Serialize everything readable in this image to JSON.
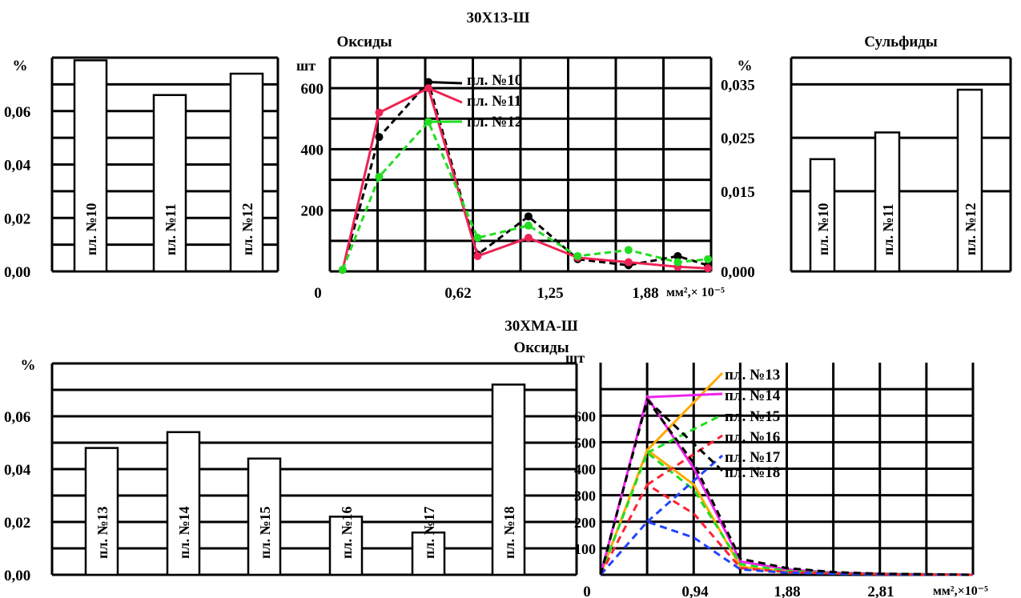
{
  "sections": {
    "top_title": "30Х13-Ш",
    "bottom_title": "30ХМА-Ш",
    "bottom_subtitle": "Оксиды"
  },
  "chart_data": [
    {
      "id": "top-left-bar",
      "type": "bar",
      "title": "",
      "ylabel": "%",
      "ylim": [
        0,
        0.08
      ],
      "yticks": [
        "0,00",
        "0,02",
        "0,04",
        "0,06"
      ],
      "categories": [
        "пл. №10",
        "пл. №11",
        "пл. №12"
      ],
      "values": [
        0.079,
        0.066,
        0.074
      ]
    },
    {
      "id": "top-middle-line",
      "type": "line",
      "title": "Оксиды",
      "ylabel": "шт",
      "xlabel": "мм²,× 10⁻⁵",
      "xlim": [
        0,
        2.4
      ],
      "ylim": [
        0,
        700
      ],
      "xticks": [
        "0",
        "0,62",
        "1,25",
        "1,88"
      ],
      "yticks": [
        "200",
        "400",
        "600"
      ],
      "series": [
        {
          "name": "пл. №10",
          "color": "#000000",
          "dash": true,
          "points": [
            [
              0.08,
              5
            ],
            [
              0.31,
              440
            ],
            [
              0.62,
              620
            ],
            [
              0.93,
              55
            ],
            [
              1.25,
              180
            ],
            [
              1.56,
              40
            ],
            [
              1.88,
              20
            ],
            [
              2.19,
              50
            ],
            [
              2.38,
              20
            ]
          ]
        },
        {
          "name": "пл. №11",
          "color": "#ee2255",
          "dash": false,
          "points": [
            [
              0.08,
              5
            ],
            [
              0.31,
              520
            ],
            [
              0.62,
              600
            ],
            [
              0.93,
              50
            ],
            [
              1.25,
              110
            ],
            [
              1.56,
              45
            ],
            [
              1.88,
              30
            ],
            [
              2.19,
              15
            ],
            [
              2.38,
              10
            ]
          ]
        },
        {
          "name": "пл. №12",
          "color": "#22dd22",
          "dash": true,
          "points": [
            [
              0.08,
              5
            ],
            [
              0.31,
              310
            ],
            [
              0.62,
              490
            ],
            [
              0.93,
              110
            ],
            [
              1.25,
              150
            ],
            [
              1.56,
              50
            ],
            [
              1.88,
              70
            ],
            [
              2.19,
              30
            ],
            [
              2.38,
              40
            ]
          ]
        }
      ]
    },
    {
      "id": "top-right-bar",
      "type": "bar",
      "title": "Сульфиды",
      "ylabel": "%",
      "ylim": [
        0,
        0.04
      ],
      "yticks": [
        "0,000",
        "0,015",
        "0,025",
        "0,035"
      ],
      "categories": [
        "пл. №10",
        "пл. №11",
        "пл. №12"
      ],
      "values": [
        0.021,
        0.026,
        0.034
      ]
    },
    {
      "id": "bottom-left-bar",
      "type": "bar",
      "title": "",
      "ylabel": "%",
      "ylim": [
        0,
        0.08
      ],
      "yticks": [
        "0,00",
        "0,02",
        "0,04",
        "0,06"
      ],
      "categories": [
        "пл. №13",
        "пл. №14",
        "пл. №15",
        "пл. №16",
        "пл. №17",
        "пл. №18"
      ],
      "values": [
        0.048,
        0.054,
        0.044,
        0.022,
        0.016,
        0.072
      ]
    },
    {
      "id": "bottom-right-line",
      "type": "line",
      "title": "",
      "ylabel": "шт",
      "xlabel": "мм²,×10⁻⁵",
      "xlim": [
        0,
        3.75
      ],
      "ylim": [
        0,
        800
      ],
      "xticks": [
        "0",
        "0,94",
        "1,88",
        "2,81"
      ],
      "yticks": [
        "100",
        "200",
        "300",
        "400",
        "500",
        "600"
      ],
      "series": [
        {
          "name": "пл. №13",
          "color": "#ffaa00",
          "dash": false,
          "points": [
            [
              0,
              0
            ],
            [
              0.47,
              470
            ],
            [
              0.94,
              340
            ],
            [
              1.41,
              30
            ],
            [
              1.88,
              12
            ],
            [
              2.35,
              6
            ],
            [
              2.81,
              3
            ],
            [
              3.28,
              2
            ],
            [
              3.75,
              0
            ]
          ]
        },
        {
          "name": "пл. №14",
          "color": "#ee22ee",
          "dash": false,
          "points": [
            [
              0,
              0
            ],
            [
              0.47,
              670
            ],
            [
              0.94,
              400
            ],
            [
              1.41,
              50
            ],
            [
              1.88,
              20
            ],
            [
              2.35,
              8
            ],
            [
              2.81,
              4
            ],
            [
              3.28,
              2
            ],
            [
              3.75,
              0
            ]
          ]
        },
        {
          "name": "пл. №15",
          "color": "#22dd22",
          "dash": true,
          "points": [
            [
              0,
              0
            ],
            [
              0.47,
              460
            ],
            [
              0.94,
              320
            ],
            [
              1.41,
              40
            ],
            [
              1.88,
              15
            ],
            [
              2.35,
              6
            ],
            [
              2.81,
              3
            ],
            [
              3.28,
              2
            ],
            [
              3.75,
              0
            ]
          ]
        },
        {
          "name": "пл. №16",
          "color": "#ff2233",
          "dash": true,
          "points": [
            [
              0,
              0
            ],
            [
              0.47,
              340
            ],
            [
              0.94,
              230
            ],
            [
              1.41,
              25
            ],
            [
              1.88,
              10
            ],
            [
              2.35,
              5
            ],
            [
              2.81,
              2
            ],
            [
              3.28,
              1
            ],
            [
              3.75,
              0
            ]
          ]
        },
        {
          "name": "пл. №17",
          "color": "#2244ff",
          "dash": true,
          "points": [
            [
              0,
              0
            ],
            [
              0.47,
              200
            ],
            [
              0.94,
              140
            ],
            [
              1.41,
              20
            ],
            [
              1.88,
              8
            ],
            [
              2.35,
              4
            ],
            [
              2.81,
              2
            ],
            [
              3.28,
              1
            ],
            [
              3.75,
              0
            ]
          ]
        },
        {
          "name": "пл. №18",
          "color": "#000000",
          "dash": true,
          "points": [
            [
              0,
              0
            ],
            [
              0.47,
              660
            ],
            [
              0.94,
              420
            ],
            [
              1.41,
              60
            ],
            [
              1.88,
              25
            ],
            [
              2.35,
              10
            ],
            [
              2.81,
              4
            ],
            [
              3.28,
              2
            ],
            [
              3.75,
              0
            ]
          ]
        }
      ]
    }
  ]
}
